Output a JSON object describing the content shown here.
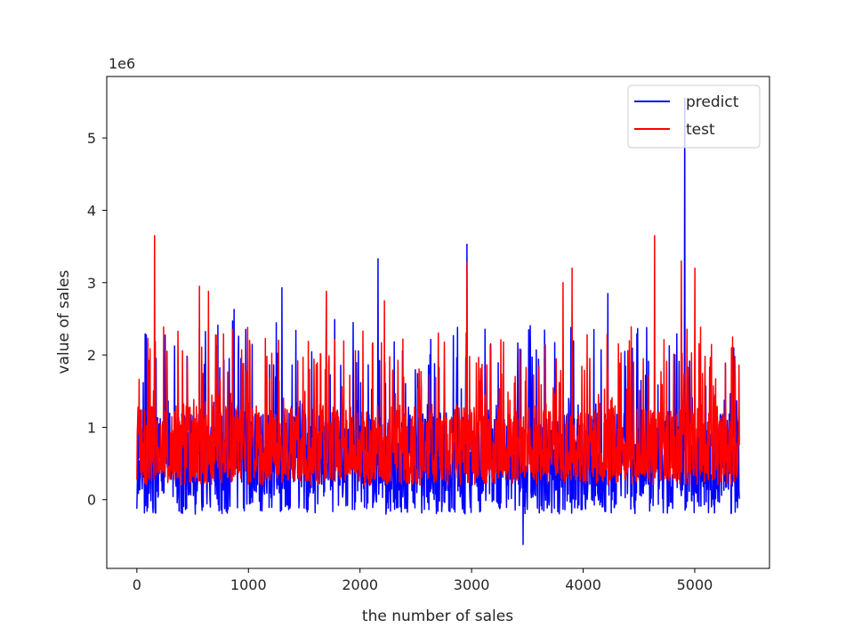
{
  "chart_data": {
    "type": "line",
    "title": "",
    "xlabel": "the number of sales",
    "ylabel": "value of sales",
    "y_multiplier_label": "1e6",
    "xlim": [
      -270,
      5670
    ],
    "ylim": [
      -0.95,
      5.85
    ],
    "x_ticks": [
      0,
      1000,
      2000,
      3000,
      4000,
      5000
    ],
    "x_tick_labels": [
      "0",
      "1000",
      "2000",
      "3000",
      "4000",
      "5000"
    ],
    "y_ticks": [
      0,
      1,
      2,
      3,
      4,
      5
    ],
    "y_tick_labels": [
      "0",
      "1",
      "2",
      "3",
      "4",
      "5"
    ],
    "x_range": [
      0,
      5400
    ],
    "grid": false,
    "legend_position": "upper-right",
    "series": [
      {
        "name": "predict",
        "color": "#0000ff",
        "description_values": {
          "typical_low": -0.2,
          "typical_high": 1.6,
          "baseline": 0.55,
          "min": -0.62,
          "peaks": [
            {
              "x": 870,
              "y": 2.63
            },
            {
              "x": 1300,
              "y": 2.93
            },
            {
              "x": 2160,
              "y": 3.33
            },
            {
              "x": 2960,
              "y": 3.53
            },
            {
              "x": 3460,
              "y": -0.62
            },
            {
              "x": 4220,
              "y": 2.85
            },
            {
              "x": 4570,
              "y": 2.38
            },
            {
              "x": 4910,
              "y": 5.55
            },
            {
              "x": 5350,
              "y": 2.1
            }
          ]
        }
      },
      {
        "name": "test",
        "color": "#ff0000",
        "description_values": {
          "typical_low": 0.2,
          "typical_high": 1.5,
          "baseline": 0.55,
          "peaks": [
            {
              "x": 160,
              "y": 3.65
            },
            {
              "x": 560,
              "y": 2.95
            },
            {
              "x": 640,
              "y": 2.88
            },
            {
              "x": 1700,
              "y": 2.88
            },
            {
              "x": 2220,
              "y": 2.75
            },
            {
              "x": 2960,
              "y": 3.28
            },
            {
              "x": 3820,
              "y": 3.0
            },
            {
              "x": 3900,
              "y": 3.2
            },
            {
              "x": 4640,
              "y": 3.65
            },
            {
              "x": 4880,
              "y": 3.3
            },
            {
              "x": 5000,
              "y": 3.2
            },
            {
              "x": 5360,
              "y": 1.98
            }
          ]
        }
      }
    ]
  }
}
